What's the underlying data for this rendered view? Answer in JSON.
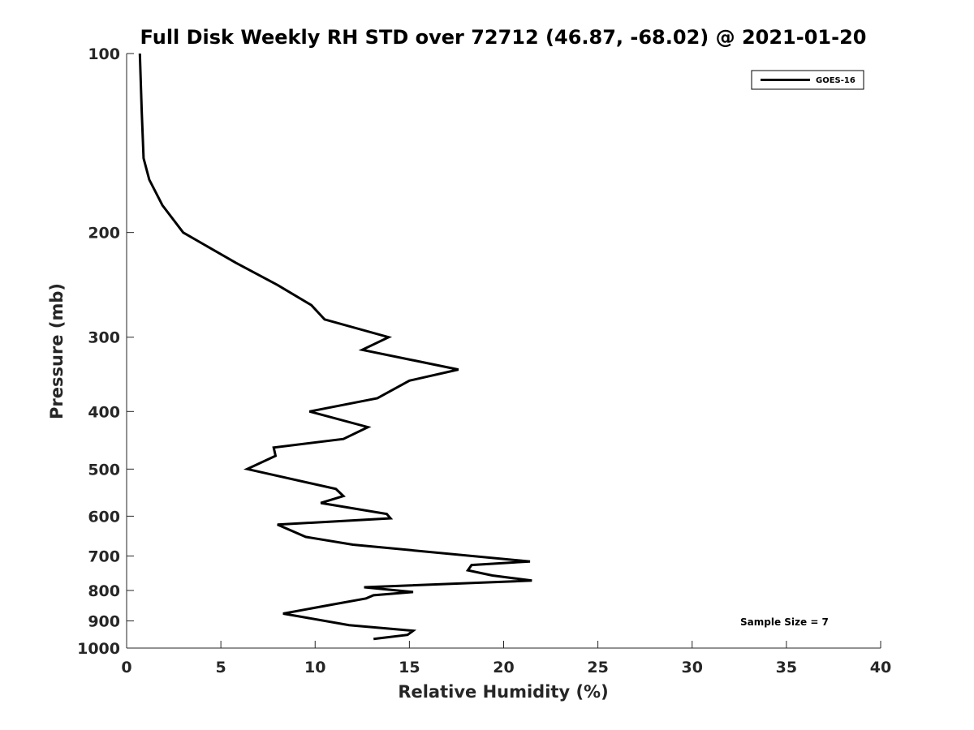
{
  "chart_data": {
    "type": "line",
    "title": "Full Disk Weekly RH STD over 72712 (46.87, -68.02) @ 2021-01-20",
    "xlabel": "Relative Humidity (%)",
    "ylabel": "Pressure (mb)",
    "xlim": [
      0,
      40
    ],
    "ylim": [
      100,
      1000
    ],
    "y_scale": "log",
    "y_reversed": true,
    "grid": false,
    "legend_position": "top-right",
    "x_ticks": [
      "0",
      "5",
      "10",
      "15",
      "20",
      "25",
      "30",
      "35",
      "40"
    ],
    "y_ticks": [
      "100",
      "200",
      "300",
      "400",
      "500",
      "600",
      "700",
      "800",
      "900",
      "1000"
    ],
    "annotation": "Sample Size = 7",
    "series": [
      {
        "name": "GOES-16",
        "color": "#000000",
        "x": [
          0.7,
          0.8,
          0.9,
          1.2,
          1.9,
          3.0,
          5.8,
          8.0,
          9.8,
          10.5,
          13.9,
          12.5,
          17.6,
          15.0,
          13.3,
          9.7,
          12.8,
          11.5,
          7.8,
          7.9,
          6.4,
          11.1,
          11.5,
          10.3,
          13.8,
          14.0,
          8.0,
          9.5,
          12.0,
          21.4,
          18.3,
          18.1,
          19.4,
          21.5,
          12.6,
          15.2,
          13.1,
          12.7,
          10.9,
          8.3,
          11.8,
          15.2,
          14.9,
          13.1
        ],
        "y": [
          100,
          125,
          150,
          163,
          180,
          200,
          225,
          245,
          265,
          280,
          300,
          315,
          340,
          355,
          380,
          400,
          425,
          445,
          460,
          475,
          500,
          540,
          555,
          570,
          595,
          605,
          620,
          650,
          670,
          715,
          725,
          740,
          755,
          770,
          790,
          805,
          815,
          825,
          845,
          875,
          915,
          935,
          950,
          965
        ]
      }
    ]
  }
}
